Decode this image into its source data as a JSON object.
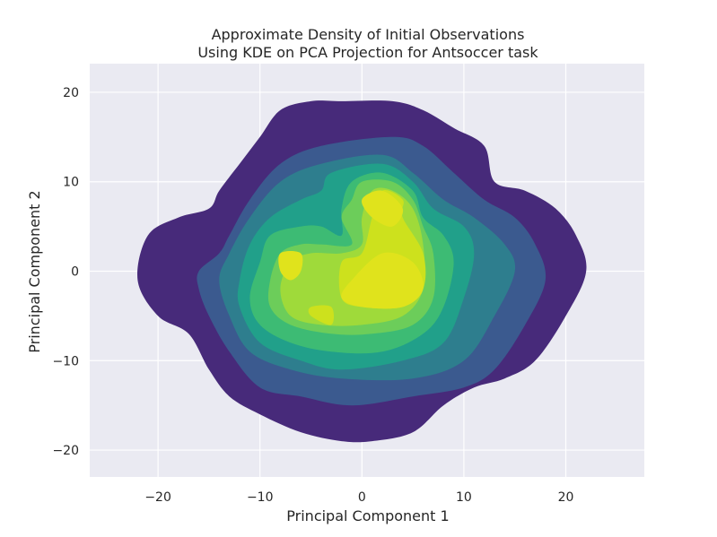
{
  "chart_data": {
    "type": "kde-density-contour",
    "title": [
      "Approximate Density of Initial Observations",
      "Using KDE on PCA Projection for Antsoccer task"
    ],
    "xlabel": "Principal Component 1",
    "ylabel": "Principal Component 2",
    "xlim": [
      -26.7,
      27.7
    ],
    "ylim": [
      -23.0,
      23.2
    ],
    "xticks": [
      -20,
      -10,
      0,
      10,
      20
    ],
    "yticks": [
      -20,
      -10,
      0,
      10,
      20
    ],
    "xtick_labels": [
      "−20",
      "−10",
      "0",
      "10",
      "20"
    ],
    "ytick_labels": [
      "−20",
      "−10",
      "0",
      "10",
      "20"
    ],
    "grid": true,
    "legend": "none",
    "colormap": "viridis",
    "background_color": "#eaeaf2",
    "grid_color": "#ffffff",
    "levels": [
      {
        "level": 1,
        "color": "#472a7a",
        "polygon": [
          [
            -2,
            19
          ],
          [
            3,
            19
          ],
          [
            6,
            18
          ],
          [
            9,
            16
          ],
          [
            12,
            14
          ],
          [
            13,
            10
          ],
          [
            16,
            9
          ],
          [
            19,
            7
          ],
          [
            21,
            4
          ],
          [
            22,
            0
          ],
          [
            20,
            -5
          ],
          [
            17,
            -10
          ],
          [
            14,
            -12
          ],
          [
            11,
            -13
          ],
          [
            8,
            -15
          ],
          [
            5,
            -18
          ],
          [
            1,
            -19
          ],
          [
            -2,
            -19
          ],
          [
            -6,
            -18
          ],
          [
            -10,
            -16
          ],
          [
            -13,
            -14
          ],
          [
            -15,
            -11
          ],
          [
            -17,
            -7
          ],
          [
            -20,
            -5
          ],
          [
            -22,
            -1
          ],
          [
            -21,
            4
          ],
          [
            -18,
            6
          ],
          [
            -15,
            7
          ],
          [
            -14,
            9
          ],
          [
            -12,
            12
          ],
          [
            -10,
            15
          ],
          [
            -8,
            18
          ],
          [
            -5,
            19
          ]
        ]
      },
      {
        "level": 2,
        "color": "#3b5a8f",
        "polygon": [
          [
            -4,
            14
          ],
          [
            3,
            15
          ],
          [
            6,
            14
          ],
          [
            9,
            11
          ],
          [
            12,
            8
          ],
          [
            15,
            6
          ],
          [
            17,
            3
          ],
          [
            18,
            -1
          ],
          [
            16,
            -6
          ],
          [
            13,
            -11
          ],
          [
            10,
            -13
          ],
          [
            5,
            -14
          ],
          [
            -1,
            -15
          ],
          [
            -6,
            -14
          ],
          [
            -10,
            -13
          ],
          [
            -13,
            -9
          ],
          [
            -15,
            -5
          ],
          [
            -16,
            -2
          ],
          [
            -16,
            0
          ],
          [
            -14,
            2
          ],
          [
            -13,
            4
          ],
          [
            -11,
            8
          ],
          [
            -8,
            12
          ]
        ]
      },
      {
        "level": 3,
        "color": "#2e7e8e",
        "polygon": [
          [
            -4,
            12
          ],
          [
            2,
            13
          ],
          [
            5,
            11
          ],
          [
            8,
            8
          ],
          [
            11,
            6
          ],
          [
            14,
            3
          ],
          [
            15,
            0
          ],
          [
            13,
            -5
          ],
          [
            10,
            -10
          ],
          [
            5,
            -12
          ],
          [
            -2,
            -12
          ],
          [
            -7,
            -11
          ],
          [
            -11,
            -9
          ],
          [
            -13,
            -5
          ],
          [
            -14,
            -1
          ],
          [
            -13,
            2
          ],
          [
            -11,
            6
          ],
          [
            -8,
            10
          ]
        ]
      },
      {
        "level": 4,
        "color": "#21a08a",
        "polygon": [
          [
            -3,
            11
          ],
          [
            2,
            12
          ],
          [
            5,
            10
          ],
          [
            7,
            7
          ],
          [
            10,
            5
          ],
          [
            11,
            2
          ],
          [
            10,
            -3
          ],
          [
            8,
            -8
          ],
          [
            4,
            -10
          ],
          [
            -2,
            -11
          ],
          [
            -6,
            -10
          ],
          [
            -10,
            -8
          ],
          [
            -12,
            -4
          ],
          [
            -12,
            -1
          ],
          [
            -11,
            3
          ],
          [
            -9,
            6
          ],
          [
            -6,
            8
          ],
          [
            -4,
            9
          ]
        ]
      },
      {
        "level": 5,
        "color": "#3dbb74",
        "polygon": [
          [
            -1,
            10
          ],
          [
            2,
            11
          ],
          [
            5,
            9
          ],
          [
            6,
            6
          ],
          [
            8,
            4
          ],
          [
            9,
            1
          ],
          [
            8,
            -4
          ],
          [
            6,
            -7
          ],
          [
            2,
            -9
          ],
          [
            -3,
            -9
          ],
          [
            -7,
            -8
          ],
          [
            -10,
            -6
          ],
          [
            -11,
            -3
          ],
          [
            -10,
            1
          ],
          [
            -9,
            4
          ],
          [
            -6,
            5
          ],
          [
            -4,
            5
          ],
          [
            -2,
            4
          ],
          [
            -2,
            7
          ]
        ]
      },
      {
        "level": 6,
        "color": "#6ccd5a",
        "polygon": [
          [
            0,
            10
          ],
          [
            3,
            10
          ],
          [
            5,
            8
          ],
          [
            6,
            5
          ],
          [
            7,
            2
          ],
          [
            7,
            -3
          ],
          [
            5,
            -6
          ],
          [
            1,
            -7
          ],
          [
            -3,
            -7
          ],
          [
            -7,
            -6
          ],
          [
            -9,
            -4
          ],
          [
            -9,
            -1
          ],
          [
            -8,
            2
          ],
          [
            -6,
            3
          ],
          [
            -4,
            3
          ],
          [
            -1,
            3
          ],
          [
            -2,
            6
          ],
          [
            -1,
            8
          ]
        ]
      },
      {
        "level": 7,
        "color": "#9fda3a",
        "polygon": [
          [
            1,
            9
          ],
          [
            3,
            9
          ],
          [
            5,
            7
          ],
          [
            6,
            3
          ],
          [
            6,
            -2
          ],
          [
            4,
            -5
          ],
          [
            0,
            -6
          ],
          [
            -4,
            -6
          ],
          [
            -7,
            -5
          ],
          [
            -8,
            -2
          ],
          [
            -7,
            1
          ],
          [
            -5,
            2
          ],
          [
            -2,
            2
          ],
          [
            0,
            3
          ],
          [
            0,
            6
          ]
        ]
      },
      {
        "level": 8,
        "color": "#cde11d",
        "polygon": [
          [
            2,
            9
          ],
          [
            4,
            8
          ],
          [
            4,
            6
          ],
          [
            6,
            2
          ],
          [
            6,
            -2
          ],
          [
            4,
            -4
          ],
          [
            0,
            -4
          ],
          [
            -2,
            -3
          ],
          [
            -2,
            1
          ],
          [
            0,
            2
          ],
          [
            1,
            6
          ]
        ]
      },
      {
        "level": 9,
        "color": "#e0e31c",
        "polygon": [
          [
            0,
            8
          ],
          [
            2,
            9
          ],
          [
            4,
            7
          ],
          [
            3,
            5
          ],
          [
            1,
            6
          ]
        ]
      },
      {
        "level": 9,
        "color": "#e0e31c",
        "polygon": [
          [
            2,
            2
          ],
          [
            5,
            1
          ],
          [
            6,
            -2
          ],
          [
            4,
            -4
          ],
          [
            0,
            -4
          ],
          [
            -2,
            -3
          ],
          [
            -1,
            -1
          ]
        ]
      },
      {
        "level": 9,
        "color": "#e0e31c",
        "polygon": [
          [
            -8,
            2
          ],
          [
            -6,
            2
          ],
          [
            -6,
            0
          ],
          [
            -7,
            -1
          ],
          [
            -8,
            0
          ]
        ]
      },
      {
        "level": 8,
        "color": "#cde11d",
        "polygon": [
          [
            -5,
            -4
          ],
          [
            -3,
            -4
          ],
          [
            -3,
            -6
          ],
          [
            -5,
            -5
          ]
        ]
      }
    ]
  }
}
